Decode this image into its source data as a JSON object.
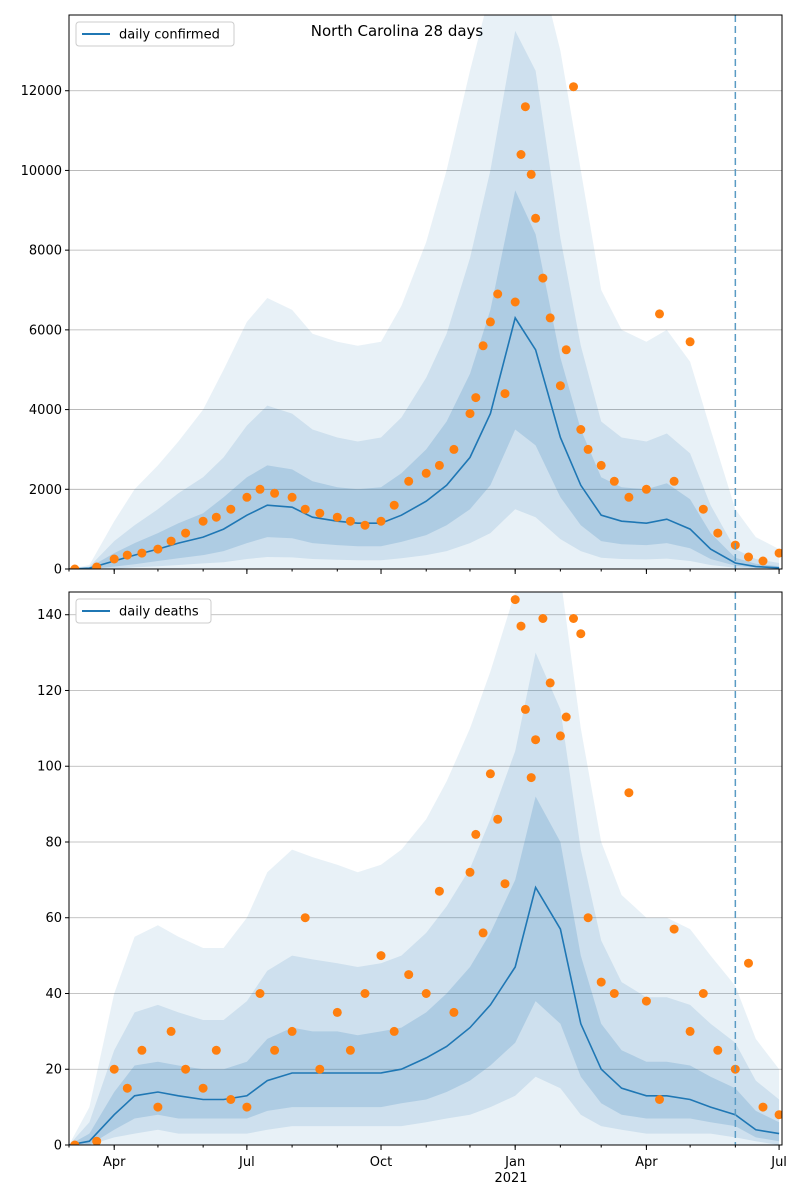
{
  "figure": {
    "title": "North Carolina 28 days"
  },
  "colors": {
    "line": "#1f77b4",
    "points": "#ff7f0e",
    "band": "#1f77b4",
    "grid": "#b0b0b0",
    "forecast_line": "#5a9bc4"
  },
  "x_axis": {
    "ticks": [
      "Apr",
      "Jul",
      "Oct",
      "Jan",
      "Apr",
      "Jul"
    ],
    "year_label": "2021"
  },
  "chart_data": [
    {
      "type": "line",
      "panel": "top",
      "legend": "daily confirmed",
      "legend_position": "top-left",
      "ylim": [
        0,
        13900
      ],
      "yticks": [
        0,
        2000,
        4000,
        6000,
        8000,
        10000,
        12000
      ],
      "grid": true,
      "forecast_start": "2021-06-01",
      "line": {
        "x": [
          "2020-03-01",
          "2020-03-15",
          "2020-04-01",
          "2020-04-15",
          "2020-05-01",
          "2020-05-15",
          "2020-06-01",
          "2020-06-15",
          "2020-07-01",
          "2020-07-15",
          "2020-08-01",
          "2020-08-15",
          "2020-09-01",
          "2020-09-15",
          "2020-10-01",
          "2020-10-15",
          "2020-11-01",
          "2020-11-15",
          "2020-12-01",
          "2020-12-15",
          "2021-01-01",
          "2021-01-15",
          "2021-02-01",
          "2021-02-15",
          "2021-03-01",
          "2021-03-15",
          "2021-04-01",
          "2021-04-15",
          "2021-05-01",
          "2021-05-15",
          "2021-06-01",
          "2021-06-15",
          "2021-07-01"
        ],
        "y": [
          0,
          20,
          200,
          350,
          500,
          650,
          800,
          1000,
          1350,
          1600,
          1550,
          1300,
          1200,
          1150,
          1150,
          1350,
          1700,
          2100,
          2800,
          3900,
          6300,
          5500,
          3300,
          2100,
          1350,
          1200,
          1150,
          1250,
          1000,
          500,
          150,
          60,
          30
        ]
      },
      "bands": [
        {
          "name": "outer",
          "lo": [
            0,
            0,
            0,
            0,
            0,
            0,
            0,
            0,
            0,
            0,
            0,
            0,
            0,
            0,
            0,
            0,
            0,
            0,
            0,
            0,
            0,
            0,
            0,
            0,
            0,
            0,
            0,
            0,
            0,
            0,
            0,
            0,
            0
          ],
          "hi": [
            0,
            100,
            1200,
            2000,
            2600,
            3200,
            4000,
            5000,
            6200,
            6800,
            6500,
            5900,
            5700,
            5600,
            5700,
            6600,
            8200,
            10000,
            12500,
            14500,
            16000,
            15500,
            13000,
            10000,
            7000,
            6000,
            5700,
            6000,
            5200,
            3500,
            1500,
            800,
            500
          ]
        },
        {
          "name": "mid",
          "lo": [
            0,
            0,
            0,
            40,
            70,
            100,
            140,
            170,
            250,
            300,
            290,
            250,
            230,
            220,
            220,
            270,
            350,
            450,
            650,
            900,
            1500,
            1300,
            750,
            450,
            280,
            250,
            240,
            260,
            200,
            100,
            30,
            10,
            5
          ],
          "hi": [
            0,
            60,
            700,
            1100,
            1500,
            1900,
            2300,
            2800,
            3600,
            4100,
            3900,
            3500,
            3300,
            3200,
            3300,
            3800,
            4800,
            5900,
            7800,
            10000,
            13500,
            12500,
            8300,
            5600,
            3700,
            3300,
            3200,
            3400,
            2900,
            1600,
            500,
            250,
            150
          ]
        },
        {
          "name": "inner",
          "lo": [
            0,
            0,
            60,
            120,
            200,
            270,
            350,
            450,
            650,
            800,
            770,
            650,
            600,
            570,
            570,
            680,
            850,
            1100,
            1500,
            2100,
            3500,
            3100,
            1800,
            1100,
            700,
            620,
            600,
            650,
            520,
            250,
            80,
            30,
            15
          ],
          "hi": [
            0,
            40,
            400,
            650,
            900,
            1150,
            1400,
            1800,
            2300,
            2600,
            2500,
            2200,
            2050,
            2000,
            2050,
            2400,
            3000,
            3700,
            4900,
            6500,
            9500,
            8400,
            5300,
            3500,
            2300,
            2050,
            2000,
            2150,
            1750,
            900,
            280,
            130,
            70
          ]
        }
      ],
      "scatter": {
        "x": [
          "2020-03-05",
          "2020-03-20",
          "2020-04-01",
          "2020-04-10",
          "2020-04-20",
          "2020-05-01",
          "2020-05-10",
          "2020-05-20",
          "2020-06-01",
          "2020-06-10",
          "2020-06-20",
          "2020-07-01",
          "2020-07-10",
          "2020-07-20",
          "2020-08-01",
          "2020-08-10",
          "2020-08-20",
          "2020-09-01",
          "2020-09-10",
          "2020-09-20",
          "2020-10-01",
          "2020-10-10",
          "2020-10-20",
          "2020-11-01",
          "2020-11-10",
          "2020-11-20",
          "2020-12-01",
          "2020-12-05",
          "2020-12-10",
          "2020-12-15",
          "2020-12-20",
          "2020-12-25",
          "2021-01-01",
          "2021-01-05",
          "2021-01-08",
          "2021-01-12",
          "2021-01-15",
          "2021-01-20",
          "2021-01-25",
          "2021-02-01",
          "2021-02-05",
          "2021-02-10",
          "2021-02-15",
          "2021-02-20",
          "2021-03-01",
          "2021-03-10",
          "2021-03-20",
          "2021-04-01",
          "2021-04-10",
          "2021-04-20",
          "2021-05-01",
          "2021-05-10",
          "2021-05-20",
          "2021-06-01",
          "2021-06-10",
          "2021-06-20",
          "2021-07-01"
        ],
        "y": [
          0,
          50,
          250,
          350,
          400,
          500,
          700,
          900,
          1200,
          1300,
          1500,
          1800,
          2000,
          1900,
          1800,
          1500,
          1400,
          1300,
          1200,
          1100,
          1200,
          1600,
          2200,
          2400,
          2600,
          3000,
          3900,
          4300,
          5600,
          6200,
          6900,
          4400,
          6700,
          10400,
          11600,
          9900,
          8800,
          7300,
          6300,
          4600,
          5500,
          12100,
          3500,
          3000,
          2600,
          2200,
          1800,
          2000,
          6400,
          2200,
          5700,
          1500,
          900,
          600,
          300,
          200,
          400
        ]
      }
    },
    {
      "type": "line",
      "panel": "bottom",
      "legend": "daily deaths",
      "legend_position": "top-left",
      "ylim": [
        0,
        146
      ],
      "yticks": [
        0,
        20,
        40,
        60,
        80,
        100,
        120,
        140
      ],
      "grid": true,
      "forecast_start": "2021-06-01",
      "line": {
        "x": [
          "2020-03-01",
          "2020-03-15",
          "2020-04-01",
          "2020-04-15",
          "2020-05-01",
          "2020-05-15",
          "2020-06-01",
          "2020-06-15",
          "2020-07-01",
          "2020-07-15",
          "2020-08-01",
          "2020-08-15",
          "2020-09-01",
          "2020-09-15",
          "2020-10-01",
          "2020-10-15",
          "2020-11-01",
          "2020-11-15",
          "2020-12-01",
          "2020-12-15",
          "2021-01-01",
          "2021-01-15",
          "2021-02-01",
          "2021-02-15",
          "2021-03-01",
          "2021-03-15",
          "2021-04-01",
          "2021-04-15",
          "2021-05-01",
          "2021-05-15",
          "2021-06-01",
          "2021-06-15",
          "2021-07-01"
        ],
        "y": [
          0,
          1,
          8,
          13,
          14,
          13,
          12,
          12,
          13,
          17,
          19,
          19,
          19,
          19,
          19,
          20,
          23,
          26,
          31,
          37,
          47,
          68,
          57,
          32,
          20,
          15,
          13,
          13,
          12,
          10,
          8,
          4,
          3
        ]
      },
      "bands": [
        {
          "name": "outer",
          "lo": [
            0,
            0,
            0,
            0,
            0,
            0,
            0,
            0,
            0,
            0,
            0,
            0,
            0,
            0,
            0,
            0,
            0,
            0,
            0,
            0,
            0,
            0,
            0,
            0,
            0,
            0,
            0,
            0,
            0,
            0,
            0,
            0,
            0
          ],
          "hi": [
            0,
            10,
            40,
            55,
            58,
            55,
            52,
            52,
            60,
            72,
            78,
            76,
            74,
            72,
            74,
            78,
            86,
            96,
            110,
            125,
            146,
            160,
            150,
            110,
            80,
            66,
            60,
            60,
            57,
            50,
            42,
            28,
            20
          ]
        },
        {
          "name": "mid",
          "lo": [
            0,
            0,
            2,
            3,
            4,
            3,
            3,
            3,
            3,
            4,
            5,
            5,
            5,
            5,
            5,
            5,
            6,
            7,
            8,
            10,
            13,
            18,
            15,
            8,
            5,
            4,
            3,
            3,
            3,
            3,
            2,
            1,
            0
          ],
          "hi": [
            0,
            6,
            25,
            35,
            37,
            35,
            33,
            33,
            38,
            46,
            50,
            49,
            48,
            47,
            48,
            50,
            56,
            63,
            73,
            86,
            104,
            130,
            115,
            78,
            54,
            43,
            39,
            39,
            37,
            32,
            27,
            17,
            12
          ]
        },
        {
          "name": "inner",
          "lo": [
            0,
            0,
            4,
            7,
            8,
            7,
            7,
            7,
            7,
            9,
            10,
            10,
            10,
            10,
            10,
            11,
            12,
            14,
            17,
            21,
            27,
            38,
            32,
            18,
            11,
            8,
            7,
            7,
            7,
            6,
            5,
            2,
            1
          ],
          "hi": [
            0,
            3,
            14,
            21,
            22,
            21,
            20,
            20,
            22,
            28,
            31,
            30,
            30,
            29,
            30,
            31,
            35,
            40,
            47,
            56,
            70,
            92,
            80,
            50,
            32,
            25,
            22,
            22,
            21,
            18,
            15,
            9,
            6
          ]
        }
      ],
      "scatter": {
        "x": [
          "2020-03-05",
          "2020-03-20",
          "2020-04-01",
          "2020-04-10",
          "2020-04-20",
          "2020-05-01",
          "2020-05-10",
          "2020-05-20",
          "2020-06-01",
          "2020-06-10",
          "2020-06-20",
          "2020-07-01",
          "2020-07-10",
          "2020-07-20",
          "2020-08-01",
          "2020-08-10",
          "2020-08-20",
          "2020-09-01",
          "2020-09-10",
          "2020-09-20",
          "2020-10-01",
          "2020-10-10",
          "2020-10-20",
          "2020-11-01",
          "2020-11-10",
          "2020-11-20",
          "2020-12-01",
          "2020-12-05",
          "2020-12-10",
          "2020-12-15",
          "2020-12-20",
          "2020-12-25",
          "2021-01-01",
          "2021-01-05",
          "2021-01-08",
          "2021-01-12",
          "2021-01-15",
          "2021-01-20",
          "2021-01-25",
          "2021-02-01",
          "2021-02-05",
          "2021-02-10",
          "2021-02-15",
          "2021-02-20",
          "2021-03-01",
          "2021-03-10",
          "2021-03-20",
          "2021-04-01",
          "2021-04-10",
          "2021-04-20",
          "2021-05-01",
          "2021-05-10",
          "2021-05-20",
          "2021-06-01",
          "2021-06-10",
          "2021-06-20",
          "2021-07-01"
        ],
        "y": [
          0,
          1,
          20,
          15,
          25,
          10,
          30,
          20,
          15,
          25,
          12,
          10,
          40,
          25,
          30,
          60,
          20,
          35,
          25,
          40,
          50,
          30,
          45,
          40,
          67,
          35,
          72,
          82,
          56,
          98,
          86,
          69,
          144,
          137,
          115,
          97,
          107,
          139,
          122,
          108,
          113,
          139,
          135,
          60,
          43,
          40,
          93,
          38,
          12,
          57,
          30,
          40,
          25,
          20,
          48,
          10,
          8
        ]
      }
    }
  ]
}
